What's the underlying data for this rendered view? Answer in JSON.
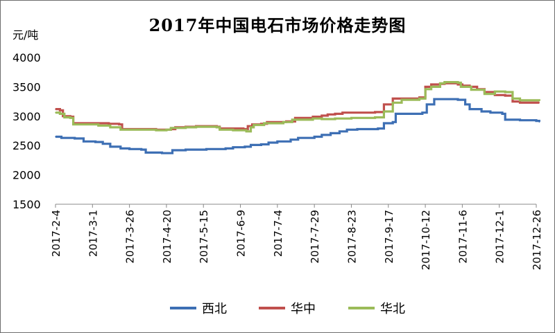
{
  "chart_data": {
    "type": "line",
    "title": "2017年中国电石市场价格走势图",
    "ylabel": "元/吨",
    "xlabel": "",
    "ylim": [
      1500,
      4000
    ],
    "yticks": [
      1500,
      2000,
      2500,
      3000,
      3500,
      4000
    ],
    "grid": false,
    "legend_position": "bottom",
    "x_tick_labels": [
      "2017-2-4",
      "2017-3-1",
      "2017-3-26",
      "2017-4-20",
      "2017-5-15",
      "2017-6-9",
      "2017-7-4",
      "2017-7-29",
      "2017-8-23",
      "2017-9-17",
      "2017-10-12",
      "2017-11-6",
      "2017-12-1",
      "2017-12-26"
    ],
    "series": [
      {
        "name": "西北",
        "color": "#3d6fb4",
        "points": [
          [
            "2017-02-04",
            2650
          ],
          [
            "2017-02-08",
            2630
          ],
          [
            "2017-02-17",
            2620
          ],
          [
            "2017-02-23",
            2570
          ],
          [
            "2017-03-03",
            2560
          ],
          [
            "2017-03-08",
            2530
          ],
          [
            "2017-03-13",
            2480
          ],
          [
            "2017-03-20",
            2450
          ],
          [
            "2017-03-26",
            2440
          ],
          [
            "2017-04-03",
            2430
          ],
          [
            "2017-04-06",
            2380
          ],
          [
            "2017-04-17",
            2370
          ],
          [
            "2017-04-24",
            2420
          ],
          [
            "2017-05-03",
            2430
          ],
          [
            "2017-05-17",
            2440
          ],
          [
            "2017-05-30",
            2450
          ],
          [
            "2017-06-04",
            2470
          ],
          [
            "2017-06-12",
            2480
          ],
          [
            "2017-06-16",
            2510
          ],
          [
            "2017-06-23",
            2520
          ],
          [
            "2017-06-28",
            2550
          ],
          [
            "2017-07-04",
            2570
          ],
          [
            "2017-07-13",
            2600
          ],
          [
            "2017-07-18",
            2630
          ],
          [
            "2017-07-29",
            2650
          ],
          [
            "2017-08-03",
            2680
          ],
          [
            "2017-08-09",
            2710
          ],
          [
            "2017-08-15",
            2740
          ],
          [
            "2017-08-20",
            2770
          ],
          [
            "2017-08-27",
            2780
          ],
          [
            "2017-09-10",
            2790
          ],
          [
            "2017-09-14",
            2880
          ],
          [
            "2017-09-20",
            2900
          ],
          [
            "2017-09-22",
            3040
          ],
          [
            "2017-10-10",
            3060
          ],
          [
            "2017-10-13",
            3200
          ],
          [
            "2017-10-18",
            3290
          ],
          [
            "2017-11-03",
            3280
          ],
          [
            "2017-11-08",
            3200
          ],
          [
            "2017-11-11",
            3120
          ],
          [
            "2017-11-19",
            3080
          ],
          [
            "2017-11-25",
            3060
          ],
          [
            "2017-12-03",
            3040
          ],
          [
            "2017-12-05",
            2940
          ],
          [
            "2017-12-15",
            2930
          ],
          [
            "2017-12-26",
            2920
          ],
          [
            "2017-12-28",
            2900
          ]
        ]
      },
      {
        "name": "华中",
        "color": "#c0504d",
        "points": [
          [
            "2017-02-04",
            3120
          ],
          [
            "2017-02-07",
            3100
          ],
          [
            "2017-02-09",
            3000
          ],
          [
            "2017-02-14",
            2990
          ],
          [
            "2017-02-16",
            2880
          ],
          [
            "2017-03-12",
            2870
          ],
          [
            "2017-03-19",
            2860
          ],
          [
            "2017-03-21",
            2780
          ],
          [
            "2017-04-13",
            2770
          ],
          [
            "2017-04-23",
            2780
          ],
          [
            "2017-04-26",
            2810
          ],
          [
            "2017-05-03",
            2820
          ],
          [
            "2017-05-10",
            2830
          ],
          [
            "2017-05-24",
            2820
          ],
          [
            "2017-05-26",
            2790
          ],
          [
            "2017-06-11",
            2780
          ],
          [
            "2017-06-14",
            2830
          ],
          [
            "2017-06-17",
            2860
          ],
          [
            "2017-06-23",
            2870
          ],
          [
            "2017-06-27",
            2900
          ],
          [
            "2017-07-10",
            2910
          ],
          [
            "2017-07-16",
            2970
          ],
          [
            "2017-07-28",
            2990
          ],
          [
            "2017-08-03",
            3010
          ],
          [
            "2017-08-07",
            3030
          ],
          [
            "2017-08-12",
            3040
          ],
          [
            "2017-08-17",
            3060
          ],
          [
            "2017-09-08",
            3070
          ],
          [
            "2017-09-14",
            3200
          ],
          [
            "2017-09-20",
            3300
          ],
          [
            "2017-10-08",
            3320
          ],
          [
            "2017-10-12",
            3500
          ],
          [
            "2017-10-16",
            3540
          ],
          [
            "2017-10-22",
            3550
          ],
          [
            "2017-10-25",
            3560
          ],
          [
            "2017-11-03",
            3540
          ],
          [
            "2017-11-06",
            3520
          ],
          [
            "2017-11-11",
            3500
          ],
          [
            "2017-11-16",
            3460
          ],
          [
            "2017-11-21",
            3410
          ],
          [
            "2017-11-28",
            3360
          ],
          [
            "2017-12-05",
            3350
          ],
          [
            "2017-12-10",
            3250
          ],
          [
            "2017-12-15",
            3230
          ],
          [
            "2017-12-28",
            3230
          ]
        ]
      },
      {
        "name": "华北",
        "color": "#9bbb59",
        "points": [
          [
            "2017-02-04",
            3060
          ],
          [
            "2017-02-07",
            3040
          ],
          [
            "2017-02-10",
            2980
          ],
          [
            "2017-02-14",
            2970
          ],
          [
            "2017-02-16",
            2860
          ],
          [
            "2017-03-05",
            2840
          ],
          [
            "2017-03-13",
            2810
          ],
          [
            "2017-03-20",
            2770
          ],
          [
            "2017-04-13",
            2760
          ],
          [
            "2017-04-20",
            2770
          ],
          [
            "2017-04-23",
            2800
          ],
          [
            "2017-05-03",
            2810
          ],
          [
            "2017-05-10",
            2820
          ],
          [
            "2017-05-24",
            2810
          ],
          [
            "2017-05-26",
            2770
          ],
          [
            "2017-06-04",
            2760
          ],
          [
            "2017-06-13",
            2740
          ],
          [
            "2017-06-16",
            2810
          ],
          [
            "2017-06-18",
            2850
          ],
          [
            "2017-06-25",
            2880
          ],
          [
            "2017-07-08",
            2900
          ],
          [
            "2017-07-14",
            2940
          ],
          [
            "2017-07-28",
            2960
          ],
          [
            "2017-08-03",
            2950
          ],
          [
            "2017-08-12",
            2960
          ],
          [
            "2017-08-23",
            2970
          ],
          [
            "2017-09-08",
            2980
          ],
          [
            "2017-09-14",
            3080
          ],
          [
            "2017-09-20",
            3230
          ],
          [
            "2017-09-26",
            3280
          ],
          [
            "2017-10-08",
            3300
          ],
          [
            "2017-10-12",
            3460
          ],
          [
            "2017-10-16",
            3500
          ],
          [
            "2017-10-22",
            3560
          ],
          [
            "2017-10-25",
            3580
          ],
          [
            "2017-11-03",
            3570
          ],
          [
            "2017-11-05",
            3500
          ],
          [
            "2017-11-12",
            3450
          ],
          [
            "2017-11-21",
            3380
          ],
          [
            "2017-11-28",
            3420
          ],
          [
            "2017-12-05",
            3410
          ],
          [
            "2017-12-10",
            3300
          ],
          [
            "2017-12-15",
            3270
          ],
          [
            "2017-12-28",
            3260
          ]
        ]
      }
    ]
  }
}
